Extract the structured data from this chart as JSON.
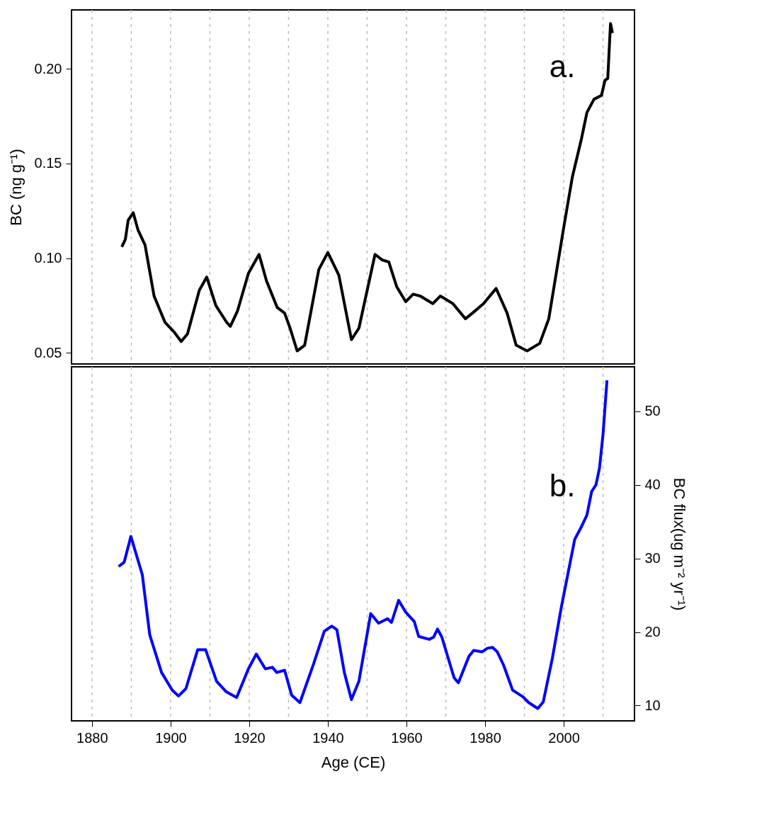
{
  "chart_data": [
    {
      "type": "line",
      "ylabel": "BC (ng g⁻¹)",
      "annotations": [
        "a."
      ],
      "xlim": [
        1874.8,
        2018.0
      ],
      "xticks": [
        1880,
        {
          "value": 1890,
          "label": null
        },
        1900,
        {
          "value": 1910,
          "label": null
        },
        1920,
        {
          "value": 1930,
          "label": null
        },
        1940,
        {
          "value": 1950,
          "label": null
        },
        1960,
        {
          "value": 1970,
          "label": null
        },
        1980,
        {
          "value": 1990,
          "label": null
        },
        2000,
        {
          "value": 2010,
          "label": null
        }
      ],
      "ylim": [
        0.0441,
        0.2312
      ],
      "yticks": [
        0.05,
        {
          "value": 0.1,
          "label": "0.10"
        },
        0.15,
        {
          "value": 0.2,
          "label": "0.20"
        }
      ],
      "grid": "x",
      "tick_labels": "y",
      "line_style": "solid",
      "marker": "none",
      "series": [
        {
          "color": "#000000",
          "x": [
            1887.6,
            1888.5,
            1889.2,
            1890.5,
            1891.7,
            1893.5,
            1895.8,
            1898.6,
            1900.9,
            1902.7,
            1904.3,
            1907.3,
            1909.2,
            1911.5,
            1914.3,
            1915.2,
            1917.0,
            1919.8,
            1922.5,
            1924.4,
            1927.1,
            1929.0,
            1930.4,
            1932.2,
            1934.1,
            1937.7,
            1940.0,
            1942.8,
            1946.0,
            1947.9,
            1952.0,
            1953.9,
            1955.5,
            1957.5,
            1959.8,
            1961.7,
            1963.5,
            1966.7,
            1968.6,
            1971.8,
            1975.0,
            1976.8,
            1979.6,
            1982.8,
            1985.6,
            1987.9,
            1990.7,
            1993.9,
            1996.2,
            1999.9,
            2002.2,
            2004.5,
            2005.9,
            2007.7,
            2009.6,
            2010.5,
            2011.2,
            2011.9,
            2012.4
          ],
          "values": [
            0.106,
            0.11,
            0.12,
            0.124,
            0.115,
            0.107,
            0.08,
            0.066,
            0.061,
            0.056,
            0.06,
            0.083,
            0.09,
            0.075,
            0.066,
            0.064,
            0.072,
            0.092,
            0.102,
            0.088,
            0.074,
            0.071,
            0.063,
            0.051,
            0.054,
            0.094,
            0.103,
            0.091,
            0.057,
            0.063,
            0.102,
            0.099,
            0.098,
            0.085,
            0.077,
            0.081,
            0.08,
            0.076,
            0.08,
            0.076,
            0.068,
            0.071,
            0.076,
            0.084,
            0.071,
            0.054,
            0.051,
            0.055,
            0.068,
            0.115,
            0.143,
            0.163,
            0.177,
            0.184,
            0.186,
            0.194,
            0.195,
            0.224,
            0.219
          ]
        }
      ]
    },
    {
      "type": "line",
      "xlabel": "Age (CE)",
      "y2label": "BC flux(ug m⁻² yr⁻¹)",
      "annotations": [
        "b."
      ],
      "xlim": [
        1874.8,
        2018.0
      ],
      "xticks": [
        1880,
        {
          "value": 1890,
          "label": null
        },
        1900,
        {
          "value": 1910,
          "label": null
        },
        1920,
        {
          "value": 1930,
          "label": null
        },
        1940,
        {
          "value": 1950,
          "label": null
        },
        1960,
        {
          "value": 1970,
          "label": null
        },
        1980,
        {
          "value": 1990,
          "label": null
        },
        2000,
        {
          "value": 2010,
          "label": null
        }
      ],
      "y2lim": [
        7.92,
        56.05
      ],
      "y2ticks": [
        10,
        20,
        30,
        40,
        50
      ],
      "grid": "x",
      "line_style": "solid",
      "marker": "none",
      "series": [
        {
          "color": "#0000ff",
          "axis": "y2",
          "x": [
            1886.8,
            1888.2,
            1889.9,
            1892.8,
            1894.7,
            1897.7,
            1900.4,
            1902.0,
            1903.9,
            1906.9,
            1908.9,
            1911.7,
            1914.1,
            1916.8,
            1919.8,
            1921.8,
            1924.1,
            1925.9,
            1927.0,
            1929.0,
            1930.8,
            1932.9,
            1936.4,
            1939.1,
            1941.0,
            1942.3,
            1944.2,
            1946.0,
            1947.9,
            1950.9,
            1952.9,
            1955.2,
            1956.2,
            1958.0,
            1959.8,
            1962.0,
            1963.1,
            1965.8,
            1966.9,
            1967.9,
            1969.0,
            1972.1,
            1973.2,
            1975.9,
            1977.1,
            1979.2,
            1980.6,
            1981.9,
            1983.1,
            1984.7,
            1987.0,
            1989.6,
            1991.1,
            1993.4,
            1994.8,
            1997.1,
            1999.4,
            2002.8,
            2004.3,
            2005.9,
            2007.1,
            2008.2,
            2009.1,
            2010.0,
            2011.0
          ],
          "values": [
            28.9,
            29.5,
            33.0,
            27.8,
            19.6,
            14.5,
            12.1,
            11.3,
            12.3,
            17.6,
            17.6,
            13.3,
            11.9,
            11.1,
            15.0,
            17.0,
            15.0,
            15.2,
            14.5,
            14.8,
            11.4,
            10.4,
            15.7,
            20.1,
            20.8,
            20.3,
            14.5,
            10.8,
            13.3,
            22.5,
            21.2,
            21.8,
            21.3,
            24.3,
            22.7,
            21.4,
            19.4,
            19.0,
            19.3,
            20.4,
            19.3,
            13.8,
            13.1,
            16.7,
            17.5,
            17.3,
            17.8,
            17.9,
            17.3,
            15.5,
            12.1,
            11.2,
            10.4,
            9.6,
            10.5,
            16.4,
            23.4,
            32.6,
            34.1,
            35.9,
            39.1,
            40.0,
            42.3,
            46.9,
            54.2
          ]
        }
      ]
    }
  ]
}
